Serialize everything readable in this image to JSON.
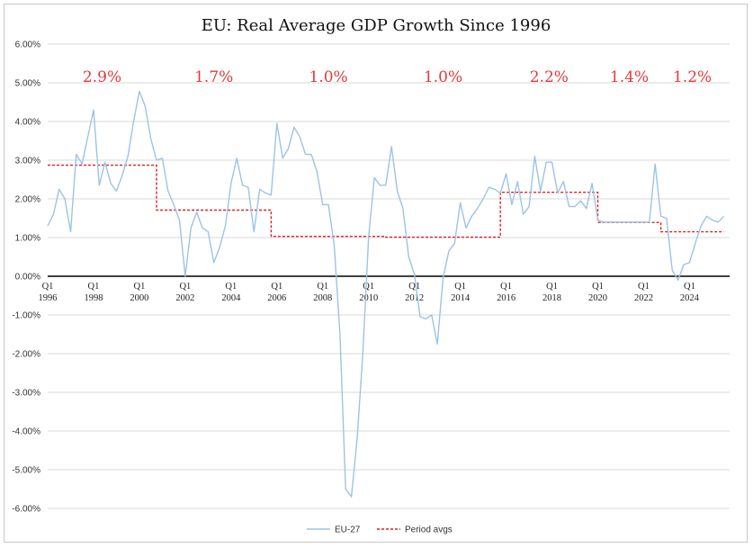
{
  "chart_data": {
    "type": "line",
    "title": "EU: Real Average GDP Growth Since 1996",
    "xlabel": "",
    "ylabel": "",
    "ylim": [
      -0.06,
      0.06
    ],
    "y_ticks": [
      "6.00%",
      "5.00%",
      "4.00%",
      "3.00%",
      "2.00%",
      "1.00%",
      "0.00%",
      "-1.00%",
      "-2.00%",
      "-3.00%",
      "-4.00%",
      "-5.00%",
      "-6.00%"
    ],
    "y_tick_values": [
      0.06,
      0.05,
      0.04,
      0.03,
      0.02,
      0.01,
      0.0,
      -0.01,
      -0.02,
      -0.03,
      -0.04,
      -0.05,
      -0.06
    ],
    "x_ticks": [
      {
        "top": "Q1",
        "bottom": "1996",
        "year": 1996
      },
      {
        "top": "Q1",
        "bottom": "1998",
        "year": 1998
      },
      {
        "top": "Q1",
        "bottom": "2000",
        "year": 2000
      },
      {
        "top": "Q1",
        "bottom": "2002",
        "year": 2002
      },
      {
        "top": "Q1",
        "bottom": "2004",
        "year": 2004
      },
      {
        "top": "Q1",
        "bottom": "2006",
        "year": 2006
      },
      {
        "top": "Q1",
        "bottom": "2008",
        "year": 2008
      },
      {
        "top": "Q1",
        "bottom": "2010",
        "year": 2010
      },
      {
        "top": "Q1",
        "bottom": "2012",
        "year": 2012
      },
      {
        "top": "Q1",
        "bottom": "2014",
        "year": 2014
      },
      {
        "top": "Q1",
        "bottom": "2016",
        "year": 2016
      },
      {
        "top": "Q1",
        "bottom": "2018",
        "year": 2018
      },
      {
        "top": "Q1",
        "bottom": "2020",
        "year": 2020
      },
      {
        "top": "Q1",
        "bottom": "2022",
        "year": 2022
      },
      {
        "top": "Q1",
        "bottom": "2024",
        "year": 2024
      }
    ],
    "grid": true,
    "legend": "bottom-center",
    "series": [
      {
        "name": "EU-27",
        "color": "#9dc3e6",
        "style": "solid",
        "start": "1996-Q1",
        "values": [
          0.013,
          0.016,
          0.0225,
          0.02,
          0.0115,
          0.0315,
          0.029,
          0.036,
          0.043,
          0.0235,
          0.0295,
          0.024,
          0.022,
          0.026,
          0.031,
          0.04,
          0.0478,
          0.044,
          0.0355,
          0.03,
          0.0305,
          0.022,
          0.0185,
          0.0145,
          0.0,
          0.0125,
          0.0165,
          0.0125,
          0.0115,
          0.0035,
          0.0075,
          0.013,
          0.024,
          0.0305,
          0.0235,
          0.023,
          0.0115,
          0.0225,
          0.0215,
          0.021,
          0.0395,
          0.0305,
          0.033,
          0.0385,
          0.036,
          0.0315,
          0.0315,
          0.027,
          0.0185,
          0.0185,
          0.008,
          -0.015,
          -0.055,
          -0.057,
          -0.042,
          -0.02,
          0.01,
          0.0255,
          0.0235,
          0.0235,
          0.0335,
          0.022,
          0.0175,
          0.005,
          0.0005,
          -0.0105,
          -0.011,
          -0.01,
          -0.0175,
          -0.0005,
          0.0065,
          0.0085,
          0.019,
          0.0125,
          0.0155,
          0.0175,
          0.02,
          0.023,
          0.0225,
          0.0215,
          0.0265,
          0.0185,
          0.0245,
          0.016,
          0.018,
          0.031,
          0.022,
          0.0295,
          0.0295,
          0.0215,
          0.0245,
          0.018,
          0.018,
          0.0195,
          0.0175,
          0.024,
          0.0145,
          0.014,
          0.014,
          0.014,
          0.014,
          0.014,
          0.014,
          0.014,
          0.014,
          0.014,
          0.029,
          0.0155,
          0.015,
          0.0015,
          -0.001,
          0.003,
          0.0035,
          0.0085,
          0.013,
          0.0155,
          0.0145,
          0.014,
          0.0155
        ]
      },
      {
        "name": "Period avgs",
        "color": "#e02020",
        "style": "dashed",
        "segments": [
          {
            "from": 1996.0,
            "to": 2000.75,
            "value": 0.0287,
            "label": "2.9%"
          },
          {
            "from": 2000.75,
            "to": 2005.75,
            "value": 0.0171,
            "label": "1.7%"
          },
          {
            "from": 2005.75,
            "to": 2010.75,
            "value": 0.0103,
            "label": "1.0%"
          },
          {
            "from": 2010.75,
            "to": 2015.75,
            "value": 0.0101,
            "label": "1.0%"
          },
          {
            "from": 2015.75,
            "to": 2020.0,
            "value": 0.0217,
            "label": "2.2%"
          },
          {
            "from": 2020.0,
            "to": 2022.75,
            "value": 0.0139,
            "label": "1.4%"
          },
          {
            "from": 2022.75,
            "to": 2025.5,
            "value": 0.0115,
            "label": "1.2%"
          }
        ]
      }
    ]
  }
}
